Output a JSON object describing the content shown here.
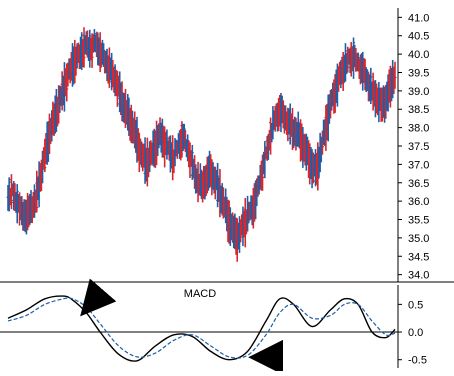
{
  "chart_data": [
    {
      "type": "ohlc",
      "panel": "price",
      "title": "",
      "xlabel": "",
      "ylabel": "",
      "ylim": [
        33.8,
        41.2
      ],
      "y_ticks": [
        34.0,
        34.5,
        35.0,
        35.5,
        36.0,
        36.5,
        37.0,
        37.5,
        38.0,
        38.5,
        39.0,
        39.5,
        40.0,
        40.5,
        41.0
      ],
      "y_tick_labels": [
        "34.0",
        "34.5",
        "35.0",
        "35.5",
        "36.0",
        "36.5",
        "37.0",
        "37.5",
        "38.0",
        "38.5",
        "39.0",
        "39.5",
        "40.0",
        "40.5",
        "41.0"
      ],
      "y_axis_side": "right",
      "grid": false,
      "up_color": "#1f5fa8",
      "down_color": "#d8262b",
      "close_path": [
        36.2,
        36.3,
        36.0,
        35.7,
        35.6,
        35.8,
        36.0,
        36.6,
        37.2,
        37.8,
        38.2,
        38.6,
        39.0,
        39.4,
        39.7,
        39.9,
        40.1,
        40.3,
        40.2,
        40.4,
        40.1,
        39.9,
        39.6,
        39.4,
        39.0,
        38.6,
        38.3,
        38.0,
        37.6,
        37.2,
        37.0,
        37.2,
        37.5,
        37.8,
        37.6,
        37.4,
        37.2,
        37.6,
        37.8,
        37.5,
        37.0,
        36.6,
        36.4,
        36.6,
        36.8,
        36.5,
        36.2,
        35.8,
        35.4,
        35.1,
        35.0,
        35.3,
        35.6,
        35.8,
        36.2,
        36.8,
        37.3,
        37.9,
        38.3,
        38.5,
        38.3,
        38.1,
        37.9,
        37.8,
        37.5,
        37.2,
        36.9,
        36.8,
        37.4,
        38.0,
        38.6,
        39.0,
        39.4,
        39.7,
        39.9,
        40.0,
        39.8,
        39.6,
        39.3,
        39.0,
        38.8,
        38.6,
        38.7,
        39.1,
        39.4
      ]
    },
    {
      "type": "line",
      "panel": "indicator",
      "title": "MACD",
      "xlabel": "",
      "ylabel": "",
      "ylim": [
        -0.65,
        0.85
      ],
      "y_ticks": [
        -0.5,
        0.0,
        0.5
      ],
      "y_tick_labels": [
        "-0.5",
        "0.0",
        "0.5"
      ],
      "y_axis_side": "right",
      "zero_line": true,
      "series": [
        {
          "style": "solid",
          "color": "#000000",
          "x": [
            0,
            4,
            8,
            12,
            14,
            17,
            20,
            24,
            28,
            32,
            36,
            40,
            44,
            48,
            52,
            56,
            59,
            62,
            66,
            70,
            73,
            76,
            79,
            82,
            84
          ],
          "y": [
            0.25,
            0.4,
            0.6,
            0.65,
            0.58,
            0.35,
            0.0,
            -0.4,
            -0.52,
            -0.25,
            -0.05,
            -0.08,
            -0.35,
            -0.5,
            -0.35,
            0.2,
            0.6,
            0.5,
            0.1,
            0.4,
            0.6,
            0.5,
            0.0,
            -0.1,
            0.05
          ]
        },
        {
          "style": "dashed",
          "color": "#1f5fa8",
          "x": [
            0,
            4,
            8,
            12,
            14,
            17,
            20,
            24,
            28,
            32,
            36,
            40,
            44,
            48,
            52,
            56,
            59,
            62,
            66,
            70,
            73,
            76,
            79,
            82,
            84
          ],
          "y": [
            0.2,
            0.3,
            0.5,
            0.6,
            0.6,
            0.45,
            0.15,
            -0.25,
            -0.45,
            -0.38,
            -0.15,
            -0.05,
            -0.25,
            -0.45,
            -0.42,
            -0.05,
            0.35,
            0.5,
            0.25,
            0.3,
            0.5,
            0.5,
            0.2,
            -0.05,
            -0.02
          ]
        }
      ],
      "annotations": [
        {
          "type": "arrow",
          "direction": "down-left",
          "target_x": 17,
          "target_y": 0.42,
          "color": "#000000"
        },
        {
          "type": "arrow",
          "direction": "left",
          "target_x": 53,
          "target_y": -0.42,
          "color": "#000000"
        }
      ]
    }
  ]
}
